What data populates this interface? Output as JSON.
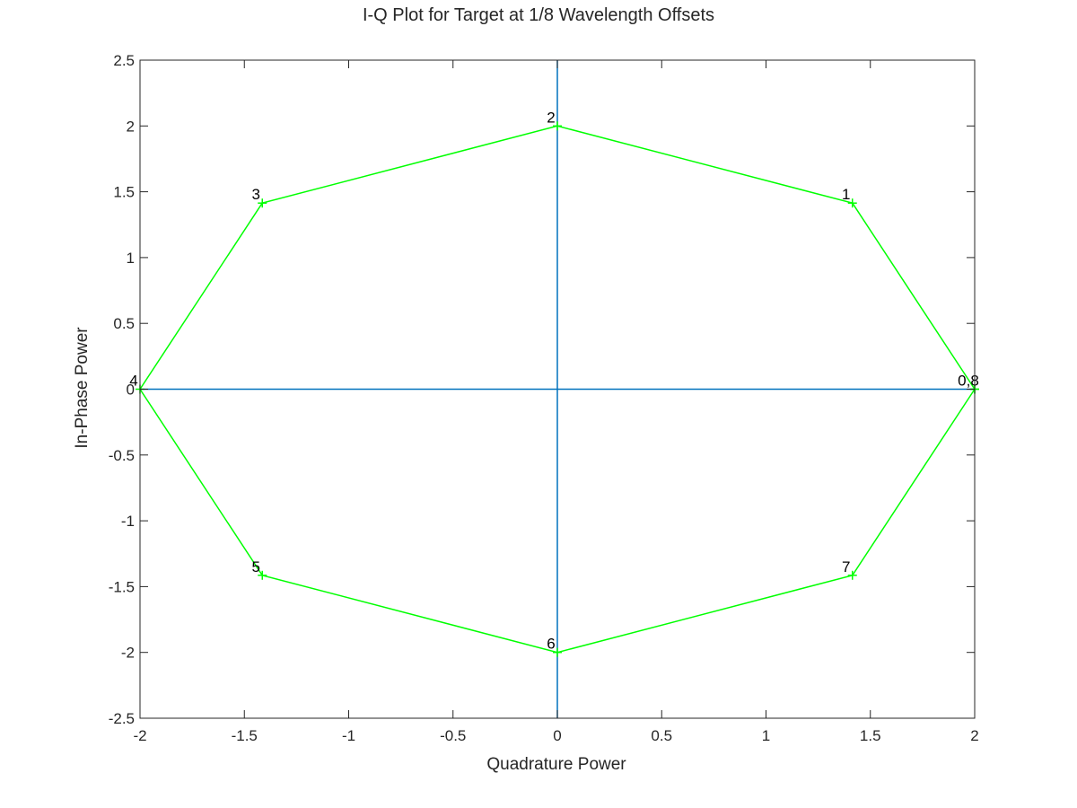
{
  "chart_data": {
    "type": "line",
    "title": "I-Q Plot for Target at 1/8 Wavelength Offsets",
    "xlabel": "Quadrature Power",
    "ylabel": "In-Phase Power",
    "xlim": [
      -2,
      2
    ],
    "ylim": [
      -2.5,
      2.5
    ],
    "xticks": [
      -2,
      -1.5,
      -1,
      -0.5,
      0,
      0.5,
      1,
      1.5,
      2
    ],
    "xtick_labels": [
      "-2",
      "-1.5",
      "-1",
      "-0.5",
      "0",
      "0.5",
      "1",
      "1.5",
      "2"
    ],
    "yticks": [
      -2.5,
      -2,
      -1.5,
      -1,
      -0.5,
      0,
      0.5,
      1,
      1.5,
      2,
      2.5
    ],
    "ytick_labels": [
      "-2.5",
      "-2",
      "-1.5",
      "-1",
      "-0.5",
      "0",
      "0.5",
      "1",
      "1.5",
      "2",
      "2.5"
    ],
    "grid": false,
    "axes_color": "#0072bd",
    "series": [
      {
        "color": "#00ff00",
        "marker": "+",
        "x": [
          2,
          1.414,
          0,
          -1.414,
          -2,
          -1.414,
          0,
          1.414,
          2
        ],
        "y": [
          0,
          1.414,
          2,
          1.414,
          0,
          -1.414,
          -2,
          -1.414,
          0
        ]
      }
    ],
    "annotations": [
      {
        "text": "0,8",
        "x": 2,
        "y": 0
      },
      {
        "text": "1",
        "x": 1.414,
        "y": 1.414
      },
      {
        "text": "2",
        "x": 0,
        "y": 2
      },
      {
        "text": "3",
        "x": -1.414,
        "y": 1.414
      },
      {
        "text": "4",
        "x": -2,
        "y": 0
      },
      {
        "text": "5",
        "x": -1.414,
        "y": -1.414
      },
      {
        "text": "6",
        "x": 0,
        "y": -2
      },
      {
        "text": "7",
        "x": 1.414,
        "y": -1.414
      }
    ]
  }
}
